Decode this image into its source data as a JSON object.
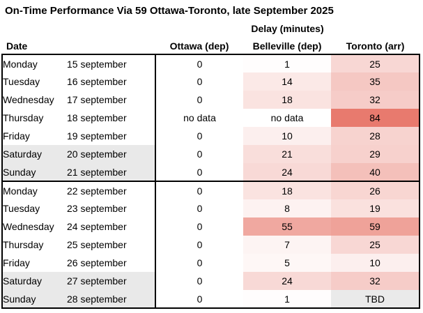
{
  "title": "On-Time Performance Via 59 Ottawa-Toronto, late September 2025",
  "chart_data": {
    "type": "table",
    "title": "On-Time Performance Via 59 Ottawa-Toronto, late September 2025",
    "group_header": "Delay (minutes)",
    "columns": {
      "date": "Date",
      "ottawa": "Ottawa (dep)",
      "belleville": "Belleville (dep)",
      "toronto": "Toronto (arr)"
    },
    "heatmap": {
      "min_color": "#FFFFFF",
      "max_color": "#E87A6E",
      "domain": [
        0,
        84
      ],
      "applies_to": [
        "ottawa",
        "belleville",
        "toronto"
      ]
    },
    "weekend_bg": "#E9E9E9",
    "tbd_bg": "#EAEAEA",
    "border_color": "#000000",
    "weeks": [
      {
        "rows": [
          {
            "day": "Monday",
            "date": "15 september",
            "ottawa": "0",
            "belleville": "1",
            "toronto": "25",
            "weekend": false
          },
          {
            "day": "Tuesday",
            "date": "16 september",
            "ottawa": "0",
            "belleville": "14",
            "toronto": "35",
            "weekend": false
          },
          {
            "day": "Wednesday",
            "date": "17 september",
            "ottawa": "0",
            "belleville": "18",
            "toronto": "32",
            "weekend": false
          },
          {
            "day": "Thursday",
            "date": "18 september",
            "ottawa": "no data",
            "belleville": "no data",
            "toronto": "84",
            "weekend": false
          },
          {
            "day": "Friday",
            "date": "19 september",
            "ottawa": "0",
            "belleville": "10",
            "toronto": "28",
            "weekend": false
          },
          {
            "day": "Saturday",
            "date": "20 september",
            "ottawa": "0",
            "belleville": "21",
            "toronto": "29",
            "weekend": true
          },
          {
            "day": "Sunday",
            "date": "21 september",
            "ottawa": "0",
            "belleville": "24",
            "toronto": "40",
            "weekend": true
          }
        ]
      },
      {
        "rows": [
          {
            "day": "Monday",
            "date": "22 september",
            "ottawa": "0",
            "belleville": "18",
            "toronto": "26",
            "weekend": false
          },
          {
            "day": "Tuesday",
            "date": "23 september",
            "ottawa": "0",
            "belleville": "8",
            "toronto": "19",
            "weekend": false
          },
          {
            "day": "Wednesday",
            "date": "24 september",
            "ottawa": "0",
            "belleville": "55",
            "toronto": "59",
            "weekend": false
          },
          {
            "day": "Thursday",
            "date": "25 september",
            "ottawa": "0",
            "belleville": "7",
            "toronto": "25",
            "weekend": false
          },
          {
            "day": "Friday",
            "date": "26 september",
            "ottawa": "0",
            "belleville": "5",
            "toronto": "10",
            "weekend": false
          },
          {
            "day": "Saturday",
            "date": "27 september",
            "ottawa": "0",
            "belleville": "24",
            "toronto": "32",
            "weekend": true
          },
          {
            "day": "Sunday",
            "date": "28 september",
            "ottawa": "0",
            "belleville": "1",
            "toronto": "TBD",
            "weekend": true
          }
        ]
      }
    ]
  }
}
